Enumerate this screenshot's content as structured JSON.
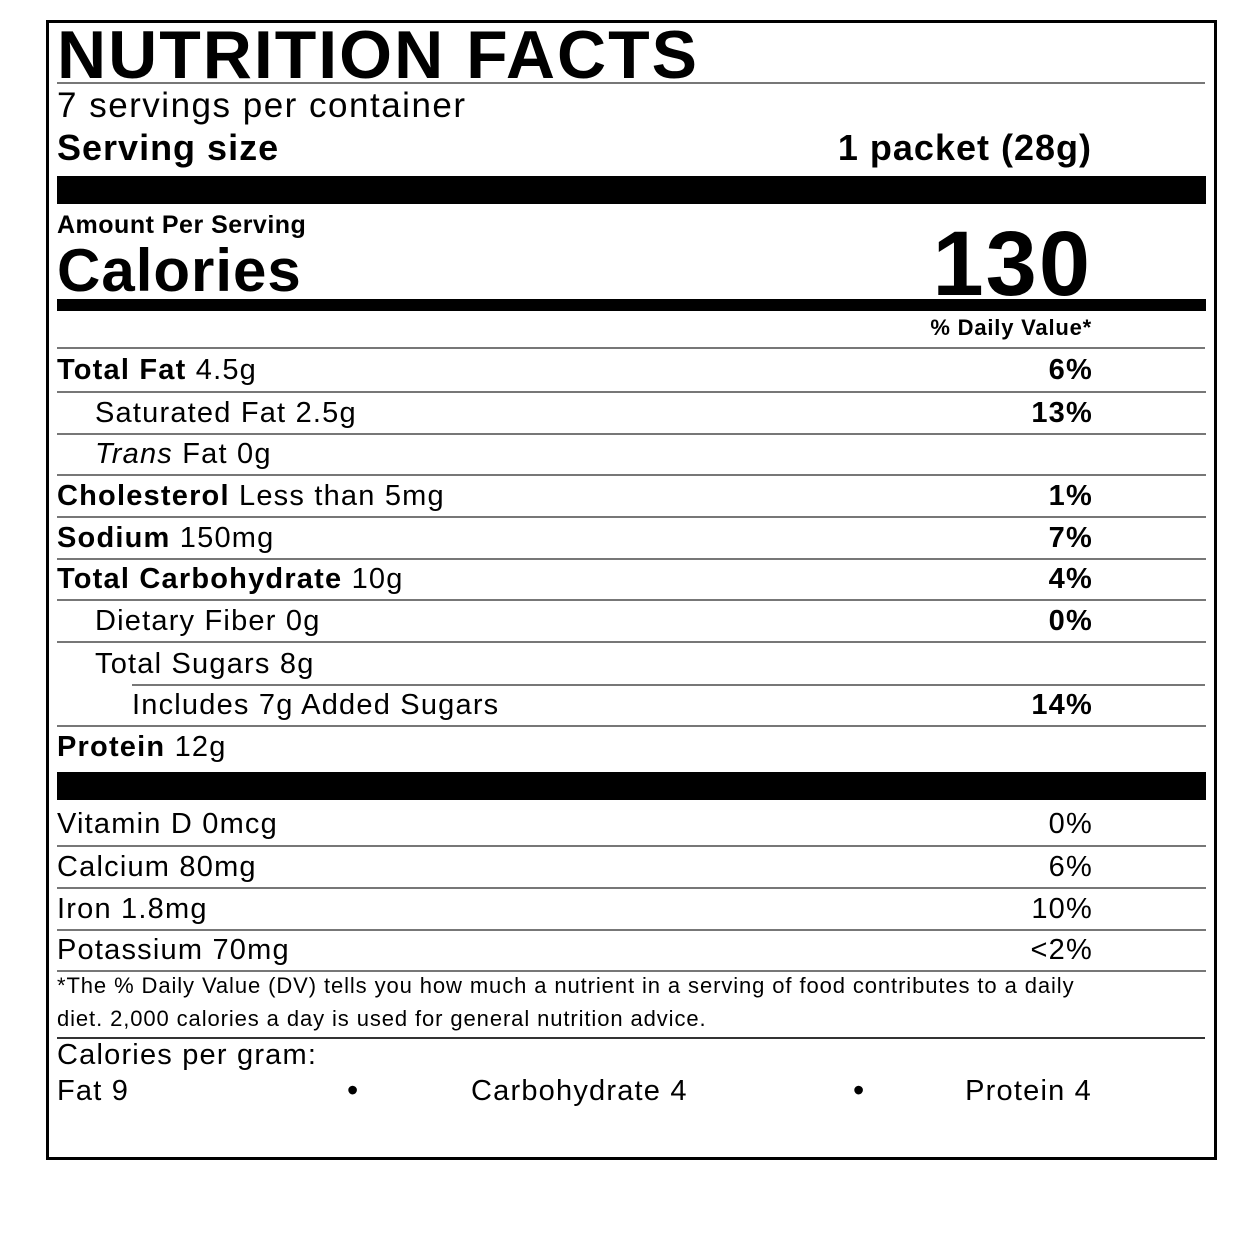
{
  "title": "NUTRITION FACTS",
  "servings_per_container": "7 servings per container",
  "serving_size": {
    "label": "Serving size",
    "value": "1 packet (28g)"
  },
  "amount_per_serving": "Amount Per Serving",
  "calories": {
    "label": "Calories",
    "value": "130"
  },
  "daily_value_header": "% Daily Value*",
  "nutrients": [
    {
      "name": "Total Fat",
      "amount": "4.5g",
      "dv": "6%"
    },
    {
      "name": "Saturated Fat",
      "amount": "2.5g",
      "dv": "13%"
    },
    {
      "name_italic": "Trans",
      "name": "Fat",
      "amount": "0g"
    },
    {
      "name": "Cholesterol",
      "amount": "Less than 5mg",
      "dv": "1%"
    },
    {
      "name": "Sodium",
      "amount": "150mg",
      "dv": "7%"
    },
    {
      "name": "Total Carbohydrate",
      "amount": "10g",
      "dv": "4%"
    },
    {
      "name": "Dietary Fiber",
      "amount": "0g",
      "dv": "0%"
    },
    {
      "name": "Total Sugars",
      "amount": "8g"
    },
    {
      "name": "Includes 7g Added Sugars",
      "dv": "14%"
    },
    {
      "name": "Protein",
      "amount": "12g"
    }
  ],
  "micronutrients": [
    {
      "name": "Vitamin D",
      "amount": "0mcg",
      "dv": "0%"
    },
    {
      "name": "Calcium",
      "amount": "80mg",
      "dv": "6%"
    },
    {
      "name": "Iron",
      "amount": "1.8mg",
      "dv": "10%"
    },
    {
      "name": "Potassium",
      "amount": "70mg",
      "dv": "<2%"
    }
  ],
  "footnote": {
    "line1": "*The % Daily Value (DV) tells you how much a nutrient in a serving of food contributes to a daily",
    "line2": "diet. 2,000 calories a day is used for general nutrition advice."
  },
  "calories_per_gram": {
    "label": "Calories per gram:",
    "fat": "Fat 9",
    "carbohydrate": "Carbohydrate 4",
    "protein": "Protein 4",
    "separator": "•"
  }
}
